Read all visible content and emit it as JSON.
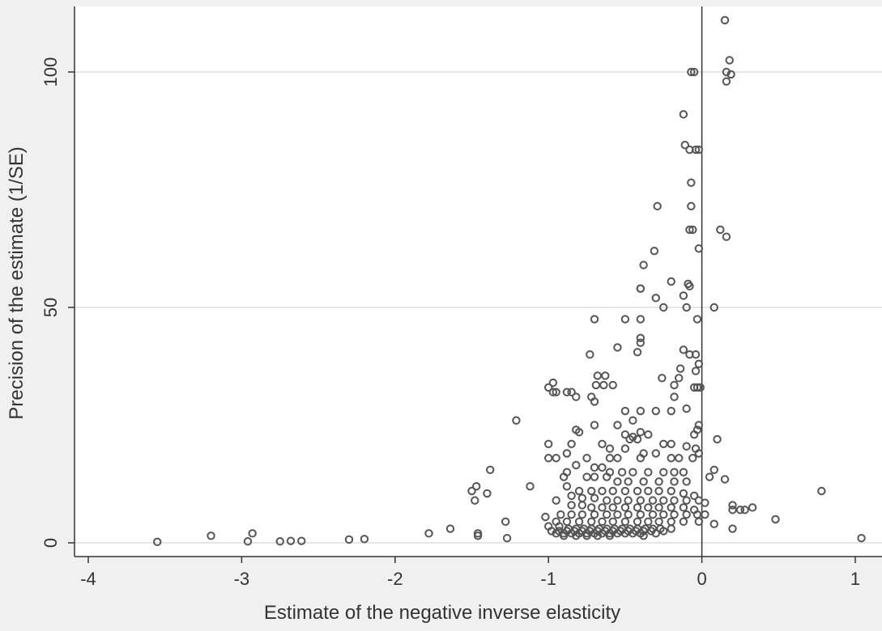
{
  "chart_data": {
    "type": "scatter",
    "title": "",
    "xlabel": "Estimate of the negative inverse elasticity",
    "ylabel": "Precision of the estimate (1/SE)",
    "xlim": [
      -4.1,
      1.15
    ],
    "ylim": [
      -3,
      112
    ],
    "xticks": [
      -4,
      -3,
      -2,
      -1,
      0,
      1
    ],
    "yticks": [
      0,
      50,
      100
    ],
    "x_tick_labels": [
      "-4",
      "-3",
      "-2",
      "-1",
      "0",
      "1"
    ],
    "y_tick_labels": [
      "0",
      "50",
      "100"
    ],
    "grid": "horizontal",
    "reference_line_x": 0,
    "legend": "none",
    "colors": {
      "plot_background": "#ffffff",
      "page_background": "#f0f0f0",
      "marker": "#555555",
      "grid": "#e6e6e6"
    },
    "points": [
      [
        0.15,
        111
      ],
      [
        0.18,
        102.5
      ],
      [
        0.16,
        100
      ],
      [
        0.19,
        99.5
      ],
      [
        0.16,
        98
      ],
      [
        -0.07,
        100
      ],
      [
        -0.05,
        100
      ],
      [
        -0.12,
        91
      ],
      [
        -0.11,
        84.5
      ],
      [
        -0.08,
        83.5
      ],
      [
        -0.04,
        83.5
      ],
      [
        -0.02,
        83.5
      ],
      [
        -0.07,
        76.5
      ],
      [
        -0.07,
        71.5
      ],
      [
        -0.29,
        71.5
      ],
      [
        -0.08,
        66.5
      ],
      [
        -0.06,
        66.5
      ],
      [
        0.12,
        66.5
      ],
      [
        0.16,
        65
      ],
      [
        -0.02,
        62.5
      ],
      [
        -0.31,
        62
      ],
      [
        -0.38,
        59
      ],
      [
        -0.2,
        55.5
      ],
      [
        -0.09,
        55
      ],
      [
        -0.08,
        54.5
      ],
      [
        -0.4,
        54
      ],
      [
        -0.4,
        54
      ],
      [
        -0.12,
        52.5
      ],
      [
        -0.3,
        52
      ],
      [
        -0.1,
        50
      ],
      [
        0.08,
        50
      ],
      [
        -0.25,
        50
      ],
      [
        -0.5,
        47.5
      ],
      [
        -0.4,
        47.5
      ],
      [
        -0.03,
        47.5
      ],
      [
        -0.7,
        47.5
      ],
      [
        -0.4,
        43.5
      ],
      [
        -0.4,
        42.5
      ],
      [
        -0.55,
        41.5
      ],
      [
        -0.42,
        40.5
      ],
      [
        -0.12,
        41
      ],
      [
        -0.08,
        40
      ],
      [
        -0.04,
        40
      ],
      [
        -0.73,
        40
      ],
      [
        -0.02,
        38
      ],
      [
        -0.04,
        36.5
      ],
      [
        -0.14,
        37
      ],
      [
        -0.68,
        35.5
      ],
      [
        -0.63,
        35.5
      ],
      [
        -0.26,
        35
      ],
      [
        -0.18,
        33.5
      ],
      [
        -0.15,
        35
      ],
      [
        -0.97,
        34
      ],
      [
        -1.0,
        33
      ],
      [
        -0.97,
        32
      ],
      [
        -0.95,
        32
      ],
      [
        -0.88,
        32
      ],
      [
        -0.85,
        32
      ],
      [
        -0.82,
        31
      ],
      [
        -0.72,
        31
      ],
      [
        -0.7,
        30
      ],
      [
        -0.64,
        33.5
      ],
      [
        -0.58,
        33.5
      ],
      [
        -0.69,
        33.5
      ],
      [
        -0.05,
        33
      ],
      [
        -0.03,
        33
      ],
      [
        -0.01,
        33
      ],
      [
        -0.18,
        31
      ],
      [
        -0.1,
        28.5
      ],
      [
        -1.21,
        26
      ],
      [
        -0.5,
        28
      ],
      [
        -0.4,
        28
      ],
      [
        -0.3,
        28
      ],
      [
        -0.2,
        28
      ],
      [
        -0.45,
        26
      ],
      [
        -0.55,
        25
      ],
      [
        -0.7,
        25
      ],
      [
        -0.82,
        24
      ],
      [
        -0.8,
        23.5
      ],
      [
        -0.4,
        23.5
      ],
      [
        -0.35,
        23
      ],
      [
        -0.47,
        22
      ],
      [
        -0.5,
        23
      ],
      [
        -0.45,
        22.5
      ],
      [
        -0.42,
        22
      ],
      [
        -0.02,
        25
      ],
      [
        -0.03,
        24
      ],
      [
        -0.05,
        23
      ],
      [
        0.1,
        22
      ],
      [
        -0.25,
        21
      ],
      [
        -0.2,
        21
      ],
      [
        -0.1,
        20.5
      ],
      [
        -0.04,
        20
      ],
      [
        -1.0,
        21
      ],
      [
        -0.85,
        21
      ],
      [
        -0.65,
        21
      ],
      [
        -0.6,
        20
      ],
      [
        -0.5,
        20
      ],
      [
        -0.38,
        19
      ],
      [
        -0.3,
        19
      ],
      [
        -0.02,
        19
      ],
      [
        -1.0,
        18
      ],
      [
        -0.95,
        18
      ],
      [
        -0.88,
        19
      ],
      [
        -0.75,
        18
      ],
      [
        -0.6,
        18
      ],
      [
        -0.55,
        18
      ],
      [
        -0.4,
        18
      ],
      [
        -0.2,
        18
      ],
      [
        -0.15,
        18
      ],
      [
        -0.06,
        18
      ],
      [
        -0.82,
        16.5
      ],
      [
        -0.7,
        16
      ],
      [
        -0.65,
        16
      ],
      [
        -0.6,
        15
      ],
      [
        -0.52,
        15
      ],
      [
        -0.45,
        15
      ],
      [
        -0.35,
        15
      ],
      [
        -0.25,
        15
      ],
      [
        -0.18,
        15
      ],
      [
        -0.12,
        15
      ],
      [
        0.08,
        15.5
      ],
      [
        -1.38,
        15.5
      ],
      [
        -0.88,
        15
      ],
      [
        -0.9,
        14
      ],
      [
        -0.75,
        14
      ],
      [
        -0.7,
        14
      ],
      [
        -0.62,
        14
      ],
      [
        -0.55,
        13
      ],
      [
        -0.48,
        13
      ],
      [
        -0.38,
        13
      ],
      [
        -0.28,
        13
      ],
      [
        -0.18,
        13
      ],
      [
        -0.1,
        13
      ],
      [
        0.05,
        14
      ],
      [
        0.15,
        13.5
      ],
      [
        -1.47,
        12
      ],
      [
        -1.5,
        11
      ],
      [
        -1.4,
        10.5
      ],
      [
        -1.12,
        12
      ],
      [
        -0.88,
        12
      ],
      [
        -0.8,
        11
      ],
      [
        -0.72,
        11
      ],
      [
        -0.65,
        11
      ],
      [
        -0.58,
        11
      ],
      [
        -0.5,
        11
      ],
      [
        -0.42,
        11
      ],
      [
        -0.35,
        11
      ],
      [
        -0.28,
        11
      ],
      [
        -0.2,
        11
      ],
      [
        -0.12,
        10.5
      ],
      [
        -0.05,
        10
      ],
      [
        0.78,
        11
      ],
      [
        -1.48,
        9
      ],
      [
        -0.95,
        9
      ],
      [
        -0.85,
        10
      ],
      [
        -0.78,
        9.5
      ],
      [
        -0.7,
        9.5
      ],
      [
        -0.62,
        9
      ],
      [
        -0.55,
        9
      ],
      [
        -0.48,
        9
      ],
      [
        -0.4,
        9
      ],
      [
        -0.32,
        9
      ],
      [
        -0.25,
        9
      ],
      [
        -0.18,
        9
      ],
      [
        -0.1,
        9
      ],
      [
        -0.02,
        9
      ],
      [
        0.02,
        8.5
      ],
      [
        0.2,
        8
      ],
      [
        -0.85,
        8
      ],
      [
        -0.78,
        8
      ],
      [
        -0.72,
        7.5
      ],
      [
        -0.65,
        7.5
      ],
      [
        -0.58,
        7.5
      ],
      [
        -0.5,
        7.5
      ],
      [
        -0.42,
        7.5
      ],
      [
        -0.35,
        7.5
      ],
      [
        -0.28,
        7.5
      ],
      [
        -0.2,
        7.5
      ],
      [
        -0.12,
        7.5
      ],
      [
        -0.05,
        7
      ],
      [
        0.2,
        7
      ],
      [
        0.25,
        7
      ],
      [
        0.28,
        7
      ],
      [
        0.33,
        7.5
      ],
      [
        -1.02,
        5.5
      ],
      [
        -0.92,
        6
      ],
      [
        -0.85,
        6
      ],
      [
        -0.78,
        6
      ],
      [
        -0.7,
        6
      ],
      [
        -0.62,
        6
      ],
      [
        -0.55,
        6
      ],
      [
        -0.48,
        6
      ],
      [
        -0.4,
        6
      ],
      [
        -0.32,
        6
      ],
      [
        -0.25,
        6
      ],
      [
        -0.18,
        6
      ],
      [
        -0.1,
        6
      ],
      [
        -0.03,
        6
      ],
      [
        0.02,
        6
      ],
      [
        0.48,
        5
      ],
      [
        -1.28,
        4.5
      ],
      [
        -0.95,
        4.5
      ],
      [
        -0.88,
        4.5
      ],
      [
        -0.8,
        4.5
      ],
      [
        -0.72,
        4.5
      ],
      [
        -0.65,
        4.5
      ],
      [
        -0.58,
        4.5
      ],
      [
        -0.5,
        4.5
      ],
      [
        -0.42,
        4.5
      ],
      [
        -0.35,
        4.5
      ],
      [
        -0.28,
        4.5
      ],
      [
        -0.2,
        4.5
      ],
      [
        -0.12,
        4.5
      ],
      [
        -0.02,
        4.5
      ],
      [
        0.08,
        4
      ],
      [
        -1.0,
        3.5
      ],
      [
        -0.93,
        3.5
      ],
      [
        -0.87,
        3
      ],
      [
        -0.82,
        3
      ],
      [
        -0.77,
        3
      ],
      [
        -0.72,
        3
      ],
      [
        -0.67,
        3
      ],
      [
        -0.62,
        3
      ],
      [
        -0.57,
        3
      ],
      [
        -0.52,
        3
      ],
      [
        -0.47,
        3
      ],
      [
        -0.42,
        3
      ],
      [
        -0.37,
        3
      ],
      [
        -0.32,
        3
      ],
      [
        -0.27,
        3
      ],
      [
        -0.2,
        3
      ],
      [
        0.2,
        3
      ],
      [
        -0.98,
        2.5
      ],
      [
        -0.93,
        2.5
      ],
      [
        -0.88,
        2.5
      ],
      [
        -0.83,
        2.5
      ],
      [
        -0.78,
        2.5
      ],
      [
        -0.73,
        2.5
      ],
      [
        -0.68,
        2.5
      ],
      [
        -0.63,
        2.5
      ],
      [
        -0.58,
        2.5
      ],
      [
        -0.53,
        2.5
      ],
      [
        -0.48,
        2.5
      ],
      [
        -0.43,
        2.5
      ],
      [
        -0.38,
        2.5
      ],
      [
        -0.33,
        2.5
      ],
      [
        -0.25,
        2.5
      ],
      [
        -0.95,
        2
      ],
      [
        -0.9,
        2
      ],
      [
        -0.85,
        2
      ],
      [
        -0.8,
        2
      ],
      [
        -0.75,
        2
      ],
      [
        -0.7,
        2
      ],
      [
        -0.65,
        2
      ],
      [
        -0.6,
        2
      ],
      [
        -0.55,
        2
      ],
      [
        -0.5,
        2
      ],
      [
        -0.45,
        2
      ],
      [
        -0.4,
        2
      ],
      [
        -0.3,
        2
      ],
      [
        -0.9,
        1.5
      ],
      [
        -0.82,
        1.5
      ],
      [
        -0.75,
        1.5
      ],
      [
        -0.68,
        1.5
      ],
      [
        -0.6,
        1.5
      ],
      [
        -0.38,
        1.5
      ],
      [
        -1.64,
        3
      ],
      [
        -1.78,
        2
      ],
      [
        -1.46,
        1.5
      ],
      [
        -1.46,
        2
      ],
      [
        -1.27,
        1
      ],
      [
        -3.2,
        1.5
      ],
      [
        -2.93,
        2
      ],
      [
        -3.55,
        0.2
      ],
      [
        -2.96,
        0.3
      ],
      [
        -2.75,
        0.3
      ],
      [
        -2.68,
        0.4
      ],
      [
        -2.61,
        0.4
      ],
      [
        -2.3,
        0.7
      ],
      [
        -2.2,
        0.8
      ],
      [
        1.04,
        1
      ]
    ]
  }
}
